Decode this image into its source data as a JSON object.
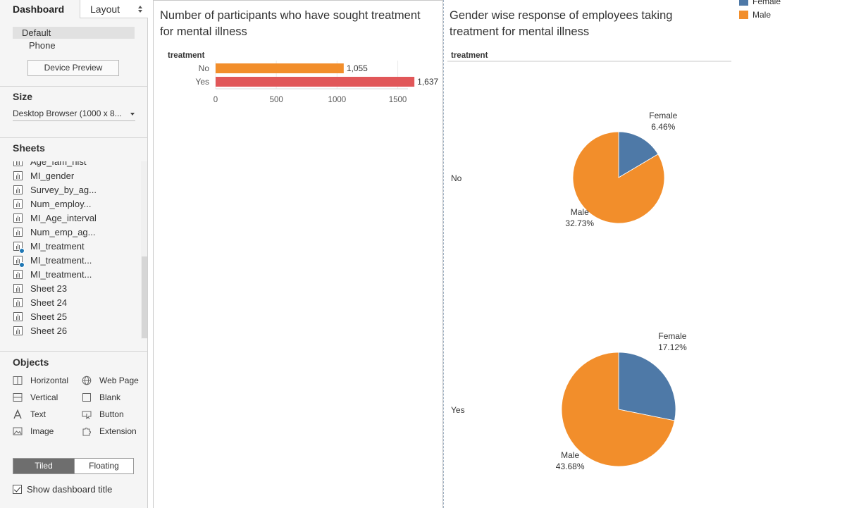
{
  "left_panel": {
    "tabs": {
      "dashboard": "Dashboard",
      "layout": "Layout"
    },
    "device": {
      "default": "Default",
      "phone": "Phone",
      "preview_button": "Device Preview"
    },
    "size": {
      "title": "Size",
      "value": "Desktop Browser (1000 x 8..."
    },
    "sheets": {
      "title": "Sheets",
      "items": [
        {
          "label": "Age_fam_hist",
          "active": false
        },
        {
          "label": "MI_gender",
          "active": false
        },
        {
          "label": "Survey_by_ag...",
          "active": false
        },
        {
          "label": "Num_employ...",
          "active": false
        },
        {
          "label": "MI_Age_interval",
          "active": false
        },
        {
          "label": "Num_emp_ag...",
          "active": false
        },
        {
          "label": "MI_treatment",
          "active": true
        },
        {
          "label": "MI_treatment...",
          "active": true
        },
        {
          "label": "MI_treatment...",
          "active": false
        },
        {
          "label": "Sheet 23",
          "active": false
        },
        {
          "label": "Sheet 24",
          "active": false
        },
        {
          "label": "Sheet 25",
          "active": false
        },
        {
          "label": "Sheet 26",
          "active": false
        }
      ]
    },
    "objects": {
      "title": "Objects",
      "horizontal": "Horizontal",
      "web_page": "Web Page",
      "vertical": "Vertical",
      "blank": "Blank",
      "text": "Text",
      "button": "Button",
      "image": "Image",
      "extension": "Extension"
    },
    "layout_mode": {
      "tiled": "Tiled",
      "floating": "Floating",
      "selected": "Tiled"
    },
    "show_title": {
      "label": "Show dashboard title",
      "checked": true
    }
  },
  "dashboard": {
    "bar_sheet": {
      "title_line1": "Number of participants who have sought treatment",
      "title_line2": "for mental illness"
    },
    "pie_sheet": {
      "title_line1": "Gender wise response of employees taking",
      "title_line2": "treatment for mental illness",
      "row_header": "treatment"
    },
    "legend": {
      "items": [
        {
          "label": "Female",
          "color": "#4e79a7"
        },
        {
          "label": "Male",
          "color": "#f28e2b"
        }
      ]
    }
  },
  "chart_data": [
    {
      "type": "bar",
      "orientation": "horizontal",
      "row_header": "treatment",
      "categories": [
        "No",
        "Yes"
      ],
      "values": [
        1055,
        1637
      ],
      "value_labels": [
        "1,055",
        "1,637"
      ],
      "colors": [
        "#f28e2b",
        "#e15759"
      ],
      "xlim": [
        0,
        1700
      ],
      "x_ticks": [
        0,
        500,
        1000,
        1500
      ],
      "x_tick_labels": [
        "0",
        "500",
        "1000",
        "1500"
      ],
      "grid": true
    },
    {
      "type": "pie",
      "row_header": "treatment",
      "panes": [
        {
          "row": "No",
          "slices": [
            {
              "name": "Female",
              "value": 6.46,
              "label": "6.46%"
            },
            {
              "name": "Male",
              "value": 32.73,
              "label": "32.73%"
            }
          ]
        },
        {
          "row": "Yes",
          "slices": [
            {
              "name": "Female",
              "value": 17.12,
              "label": "17.12%"
            },
            {
              "name": "Male",
              "value": 43.68,
              "label": "43.68%"
            }
          ]
        }
      ],
      "series_colors": {
        "Female": "#4e79a7",
        "Male": "#f28e2b"
      },
      "legend_position": "top-right"
    }
  ]
}
